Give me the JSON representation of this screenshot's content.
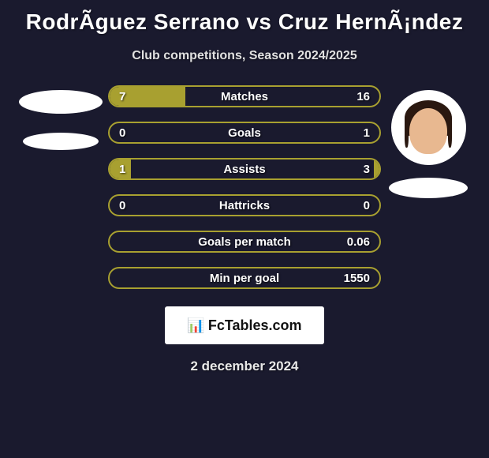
{
  "header": {
    "title": "RodrÃ­guez Serrano vs Cruz HernÃ¡ndez",
    "subtitle": "Club competitions, Season 2024/2025"
  },
  "colors": {
    "background": "#1a1a2e",
    "bar_fill": "#a8a030",
    "bar_border": "#a8a030",
    "text": "#ffffff",
    "subtitle_text": "#e0e0e0",
    "logo_bg": "#ffffff",
    "logo_text": "#111111"
  },
  "players": {
    "left": {
      "name": "RodrÃ­guez Serrano"
    },
    "right": {
      "name": "Cruz HernÃ¡ndez"
    }
  },
  "stats": [
    {
      "label": "Matches",
      "left_value": "7",
      "right_value": "16",
      "left_pct": 28,
      "right_pct": 0
    },
    {
      "label": "Goals",
      "left_value": "0",
      "right_value": "1",
      "left_pct": 0,
      "right_pct": 0
    },
    {
      "label": "Assists",
      "left_value": "1",
      "right_value": "3",
      "left_pct": 8,
      "right_pct": 2
    },
    {
      "label": "Hattricks",
      "left_value": "0",
      "right_value": "0",
      "left_pct": 0,
      "right_pct": 0
    },
    {
      "label": "Goals per match",
      "left_value": "",
      "right_value": "0.06",
      "left_pct": 0,
      "right_pct": 0
    },
    {
      "label": "Min per goal",
      "left_value": "",
      "right_value": "1550",
      "left_pct": 0,
      "right_pct": 0
    }
  ],
  "logo": {
    "icon_text": "📊",
    "text": "FcTables.com"
  },
  "footer": {
    "date": "2 december 2024"
  },
  "typography": {
    "title_fontsize": 28,
    "subtitle_fontsize": 16,
    "stat_label_fontsize": 15,
    "logo_fontsize": 18,
    "date_fontsize": 17
  },
  "layout": {
    "bar_row_height": 28,
    "bar_row_gap": 18,
    "bar_border_radius": 14,
    "bars_width": 346
  }
}
